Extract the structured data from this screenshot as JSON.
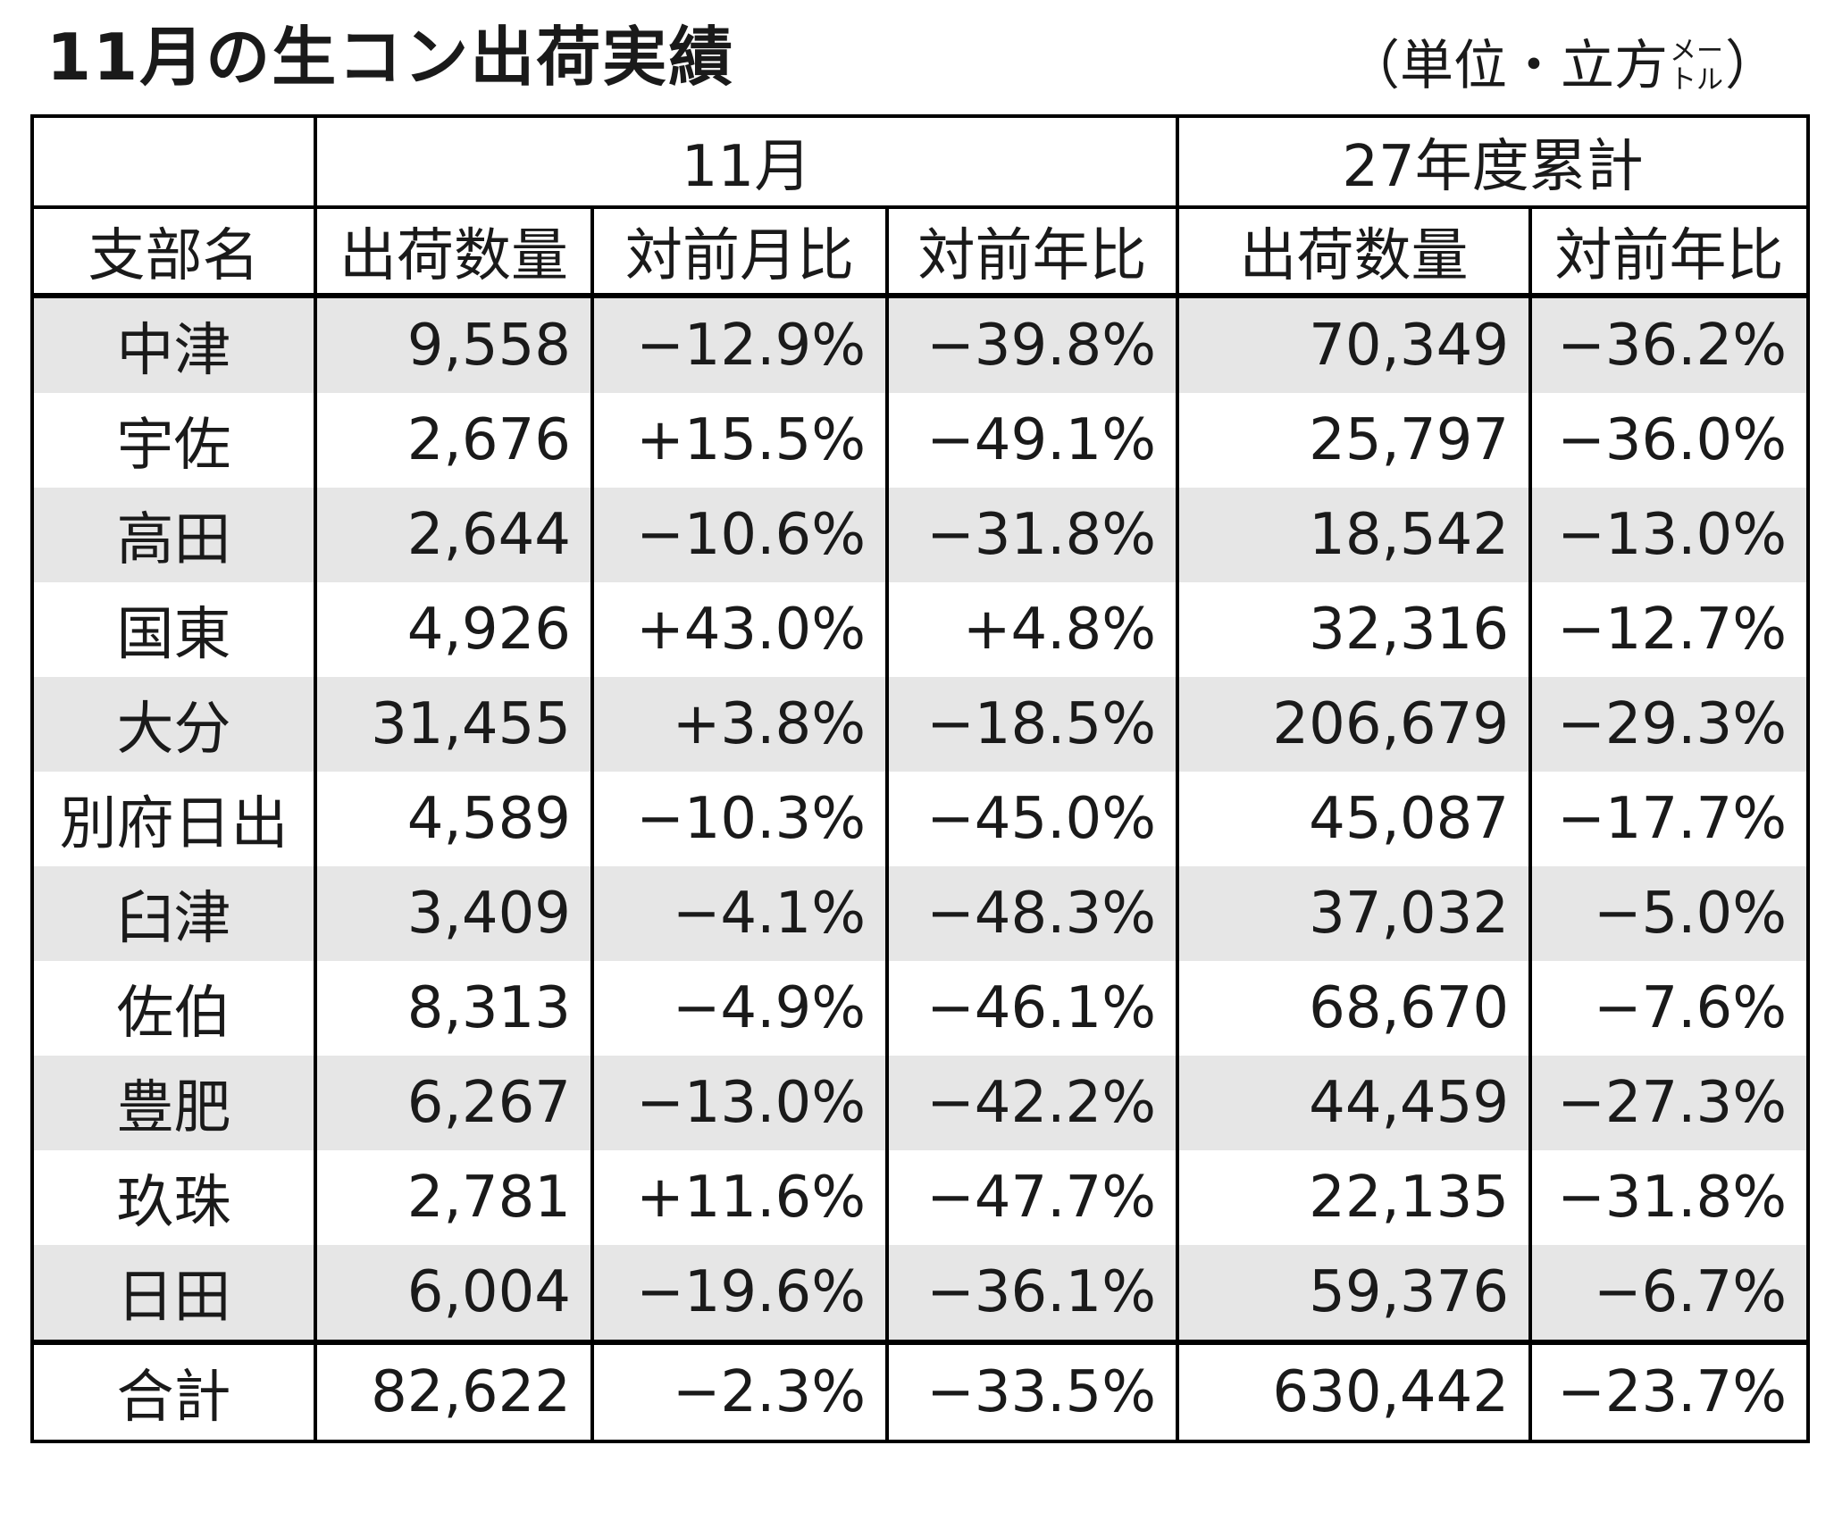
{
  "title": "11月の生コン出荷実績",
  "unit": {
    "prefix": "（単位・立方",
    "stack_top": "メー",
    "stack_bottom": "トル",
    "suffix": "）"
  },
  "header": {
    "group_month": "11月",
    "group_cumulative": "27年度累計",
    "col_branch": "支部名",
    "col_qty": "出荷数量",
    "col_mom": "対前月比",
    "col_yoy": "対前年比",
    "col_cum_qty": "出荷数量",
    "col_cum_yoy": "対前年比"
  },
  "rows": [
    {
      "branch": "中津",
      "qty": "9,558",
      "mom": "−12.9%",
      "yoy": "−39.8%",
      "cum_qty": "70,349",
      "cum_yoy": "−36.2%"
    },
    {
      "branch": "宇佐",
      "qty": "2,676",
      "mom": "+15.5%",
      "yoy": "−49.1%",
      "cum_qty": "25,797",
      "cum_yoy": "−36.0%"
    },
    {
      "branch": "高田",
      "qty": "2,644",
      "mom": "−10.6%",
      "yoy": "−31.8%",
      "cum_qty": "18,542",
      "cum_yoy": "−13.0%"
    },
    {
      "branch": "国東",
      "qty": "4,926",
      "mom": "+43.0%",
      "yoy": "+4.8%",
      "cum_qty": "32,316",
      "cum_yoy": "−12.7%"
    },
    {
      "branch": "大分",
      "qty": "31,455",
      "mom": "+3.8%",
      "yoy": "−18.5%",
      "cum_qty": "206,679",
      "cum_yoy": "−29.3%"
    },
    {
      "branch": "別府日出",
      "qty": "4,589",
      "mom": "−10.3%",
      "yoy": "−45.0%",
      "cum_qty": "45,087",
      "cum_yoy": "−17.7%"
    },
    {
      "branch": "臼津",
      "qty": "3,409",
      "mom": "−4.1%",
      "yoy": "−48.3%",
      "cum_qty": "37,032",
      "cum_yoy": "−5.0%"
    },
    {
      "branch": "佐伯",
      "qty": "8,313",
      "mom": "−4.9%",
      "yoy": "−46.1%",
      "cum_qty": "68,670",
      "cum_yoy": "−7.6%"
    },
    {
      "branch": "豊肥",
      "qty": "6,267",
      "mom": "−13.0%",
      "yoy": "−42.2%",
      "cum_qty": "44,459",
      "cum_yoy": "−27.3%"
    },
    {
      "branch": "玖珠",
      "qty": "2,781",
      "mom": "+11.6%",
      "yoy": "−47.7%",
      "cum_qty": "22,135",
      "cum_yoy": "−31.8%"
    },
    {
      "branch": "日田",
      "qty": "6,004",
      "mom": "−19.6%",
      "yoy": "−36.1%",
      "cum_qty": "59,376",
      "cum_yoy": "−6.7%"
    }
  ],
  "total": {
    "branch": "合計",
    "qty": "82,622",
    "mom": "−2.3%",
    "yoy": "−33.5%",
    "cum_qty": "630,442",
    "cum_yoy": "−23.7%"
  }
}
